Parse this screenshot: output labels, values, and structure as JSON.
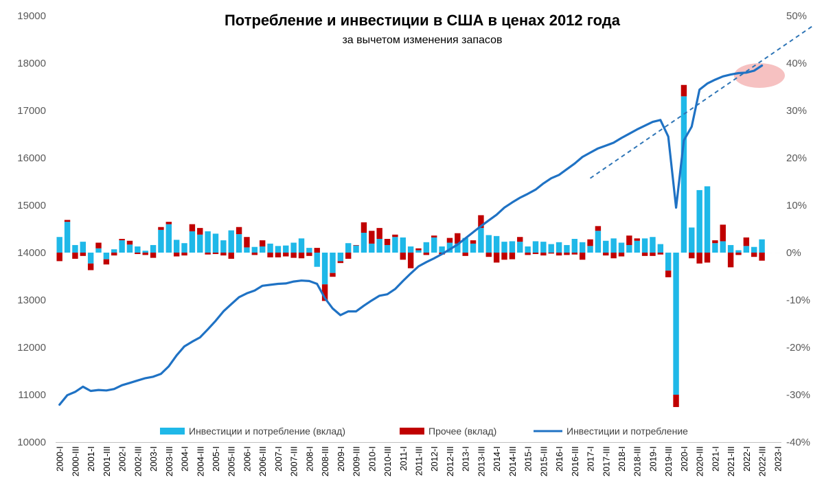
{
  "chart_data": {
    "type": "bar+line",
    "title": "Потребление и инвестиции в США в ценах 2012 года",
    "subtitle": "за вычетом изменения запасов",
    "left_axis": {
      "min": 10000,
      "max": 19000,
      "ticks": [
        "10000",
        "11000",
        "12000",
        "13000",
        "14000",
        "15000",
        "16000",
        "17000",
        "18000",
        "19000"
      ]
    },
    "right_axis": {
      "min": -40,
      "max": 50,
      "ticks": [
        "-40%",
        "-30%",
        "-20%",
        "-10%",
        "0%",
        "10%",
        "20%",
        "30%",
        "40%",
        "50%"
      ]
    },
    "x_labels": [
      "2000-I",
      "2000-III",
      "2001-I",
      "2001-III",
      "2002-I",
      "2002-III",
      "2003-I",
      "2003-III",
      "2004-I",
      "2004-III",
      "2005-I",
      "2005-III",
      "2006-I",
      "2006-III",
      "2007-I",
      "2007-III",
      "2008-I",
      "2008-III",
      "2009-I",
      "2009-III",
      "2010-I",
      "2010-III",
      "2011-I",
      "2011-III",
      "2012-I",
      "2012-III",
      "2013-I",
      "2013-III",
      "2014-I",
      "2014-III",
      "2015-I",
      "2015-III",
      "2016-I",
      "2016-III",
      "2017-I",
      "2017-III",
      "2018-I",
      "2018-III",
      "2019-I",
      "2019-III",
      "2020-I",
      "2020-III",
      "2021-I",
      "2021-III",
      "2022-I",
      "2022-III",
      "2023-I"
    ],
    "series": [
      {
        "name": "Инвестиции и потребление (вклад)",
        "type": "bar",
        "axis": "right",
        "color": "#1fb8e8",
        "values": [
          3.3,
          6.5,
          1.6,
          2.3,
          -2.3,
          0.9,
          -1.4,
          0.7,
          2.6,
          1.7,
          1.3,
          0.4,
          1.6,
          4.8,
          6.0,
          2.7,
          2.0,
          4.5,
          3.8,
          4.5,
          4.0,
          2.6,
          4.7,
          3.9,
          1.1,
          1.2,
          1.3,
          1.9,
          1.4,
          1.5,
          2.1,
          3.0,
          1.0,
          -3.0,
          -6.7,
          -4.3,
          -1.8,
          2.0,
          1.5,
          4.2,
          1.9,
          2.9,
          1.6,
          3.3,
          3.2,
          1.3,
          0.5,
          2.2,
          3.2,
          1.3,
          2.1,
          1.9,
          3.1,
          1.9,
          5.2,
          3.7,
          3.5,
          2.3,
          2.4,
          2.3,
          1.3,
          2.4,
          2.3,
          1.8,
          2.2,
          1.6,
          2.9,
          2.2,
          1.4,
          4.6,
          2.5,
          3.0,
          2.1,
          1.6,
          2.5,
          3.0,
          3.3,
          1.8,
          -3.8,
          -30.0,
          33.0,
          5.3,
          13.2,
          14.0,
          2.0,
          2.4,
          1.6,
          0.5,
          1.4,
          1.2,
          2.8
        ]
      },
      {
        "name": "Прочее (вклад)",
        "type": "bar",
        "axis": "right",
        "color": "#c00000",
        "values": [
          -1.8,
          0.4,
          -1.3,
          -0.7,
          -1.4,
          1.2,
          -1.1,
          -0.6,
          0.3,
          0.8,
          -0.3,
          -0.5,
          -1.1,
          0.6,
          0.5,
          -0.8,
          -0.6,
          1.5,
          1.4,
          -0.4,
          -0.3,
          -0.6,
          -1.3,
          1.5,
          2.2,
          -0.5,
          1.3,
          -1.0,
          -1.0,
          -0.8,
          -1.1,
          -1.2,
          -0.7,
          1.0,
          -3.5,
          -0.8,
          -0.4,
          -1.3,
          0.1,
          2.2,
          2.7,
          2.3,
          1.3,
          0.5,
          -1.5,
          -3.3,
          0.4,
          -0.5,
          0.4,
          -0.4,
          1.0,
          2.2,
          -0.7,
          0.7,
          2.7,
          -0.9,
          -2.1,
          -1.5,
          -1.4,
          1.0,
          -0.5,
          -0.3,
          -0.6,
          -0.2,
          -0.6,
          -0.5,
          -0.4,
          -1.5,
          1.4,
          1.0,
          -0.6,
          -1.2,
          -0.8,
          2.0,
          0.5,
          -0.7,
          -0.7,
          -0.4,
          -1.4,
          -2.6,
          2.4,
          -1.2,
          -2.3,
          -2.1,
          0.6,
          3.5,
          -3.1,
          -0.5,
          1.8,
          -0.9,
          -1.7
        ]
      },
      {
        "name": "Инвестиции и потребление",
        "type": "line",
        "axis": "left",
        "color": "#1f72c4",
        "values": [
          10790,
          10990,
          11060,
          11170,
          11080,
          11100,
          11090,
          11120,
          11200,
          11250,
          11300,
          11350,
          11380,
          11440,
          11600,
          11830,
          12020,
          12120,
          12210,
          12380,
          12560,
          12760,
          12910,
          13060,
          13140,
          13200,
          13300,
          13320,
          13340,
          13350,
          13390,
          13410,
          13400,
          13340,
          13040,
          12820,
          12680,
          12760,
          12760,
          12880,
          12990,
          13090,
          13120,
          13230,
          13400,
          13560,
          13710,
          13800,
          13880,
          13970,
          14070,
          14170,
          14300,
          14430,
          14560,
          14680,
          14800,
          14950,
          15060,
          15160,
          15240,
          15330,
          15460,
          15570,
          15640,
          15760,
          15880,
          16020,
          16110,
          16200,
          16260,
          16320,
          16420,
          16510,
          16600,
          16680,
          16760,
          16800,
          16450,
          14950,
          16370,
          16660,
          17440,
          17570,
          17650,
          17720,
          17760,
          17790,
          17800,
          17840,
          17950
        ]
      }
    ],
    "trend_line": {
      "style": "dashed",
      "color": "#2e75b6",
      "from": {
        "period": "2017-I",
        "value": 15570
      },
      "to": {
        "period": "beyond 2023-I",
        "value": 18800
      }
    },
    "annotation": {
      "shape": "ellipse",
      "color": "#f4b6b6",
      "target": "2022-I to 2023-I"
    },
    "legend": {
      "position": "bottom",
      "items": [
        "Инвестиции и потребление (вклад)",
        "Прочее (вклад)",
        "Инвестиции и потребление"
      ]
    }
  }
}
